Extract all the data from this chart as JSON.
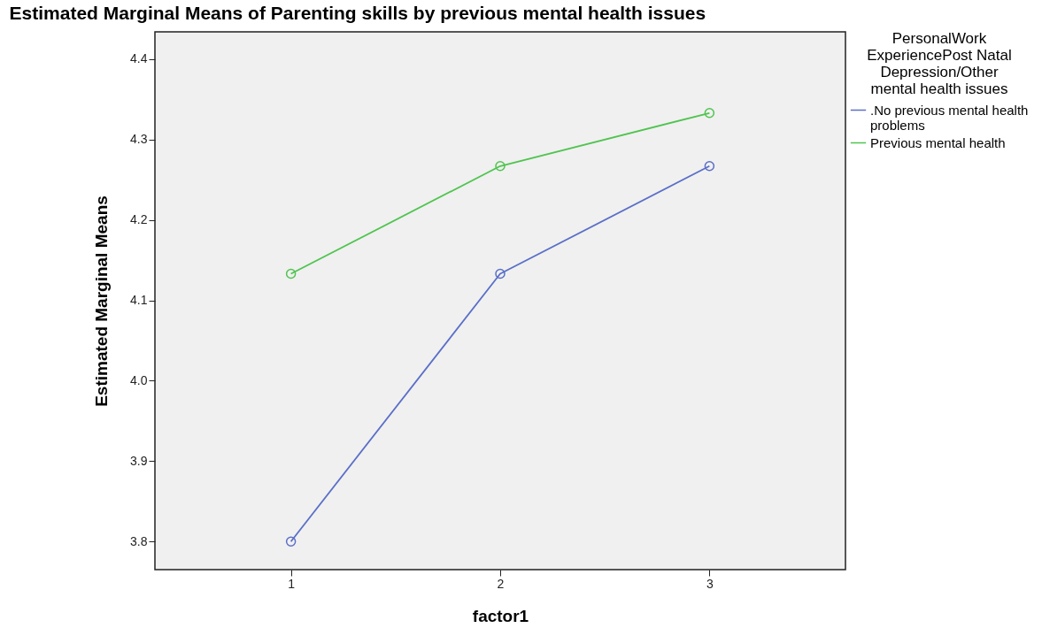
{
  "chart_data": {
    "type": "line",
    "title": "Estimated Marginal Means of Parenting skills by previous mental health issues",
    "xlabel": "factor1",
    "ylabel": "Estimated Marginal Means",
    "legend_title": "PersonalWork ExperiencePost Natal Depression/Other mental health issues",
    "x": [
      1,
      2,
      3
    ],
    "xlim": [
      0.35,
      3.65
    ],
    "xticks": [
      1,
      2,
      3
    ],
    "ylim": [
      3.765,
      4.434
    ],
    "yticks": [
      3.8,
      3.9,
      {
        "value": 4,
        "label": "4.0"
      },
      4.1,
      4.2,
      4.3,
      4.4
    ],
    "grid": false,
    "legend": "top right",
    "marker": "circle",
    "series": [
      {
        "name": ".No previous mental health problems",
        "color": "#5a6fc8",
        "values": [
          3.8,
          4.133,
          4.267
        ]
      },
      {
        "name": "Previous mental health",
        "color": "#4fc44f",
        "values": [
          4.133,
          4.267,
          4.333
        ]
      }
    ]
  }
}
